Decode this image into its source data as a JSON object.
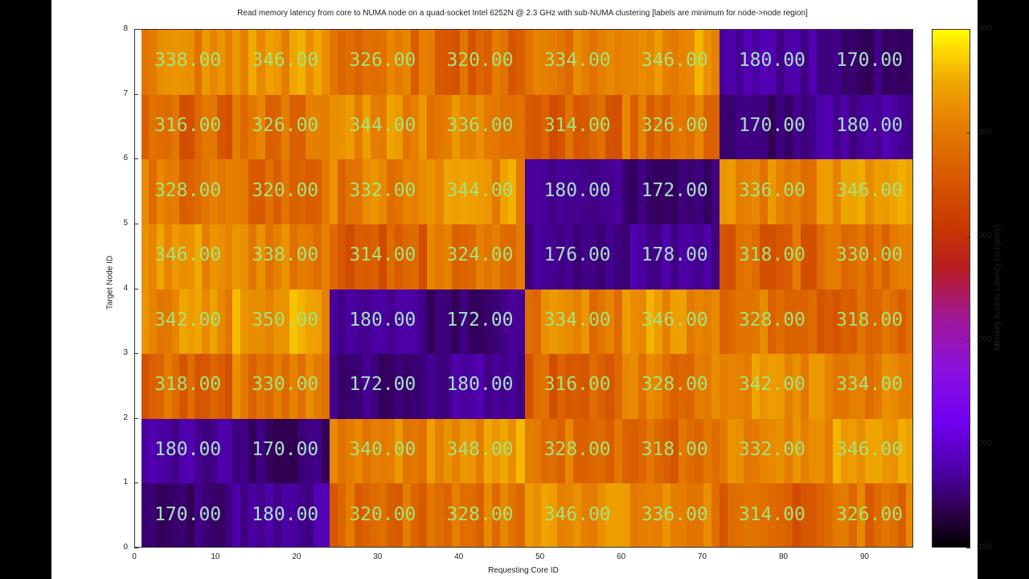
{
  "chart_data": {
    "type": "heatmap",
    "title": "Read memory latency from core to NUMA node on a quad-socket Intel 6252N @ 2.3 GHz with sub-NUMA clustering [labels are minimum for node->node region]",
    "xlabel": "Requesting Core ID",
    "ylabel": "Target Node ID",
    "colorbar_label": "Memory Access Latency (in cycles)",
    "xlim": [
      0,
      96
    ],
    "ylim": [
      0,
      8
    ],
    "zlim": [
      150,
      400
    ],
    "x_ticks": [
      "0",
      "10",
      "20",
      "30",
      "40",
      "50",
      "60",
      "70",
      "80",
      "90"
    ],
    "y_ticks": [
      "0",
      "1",
      "2",
      "3",
      "4",
      "5",
      "6",
      "7",
      "8"
    ],
    "colorbar_ticks": [
      "150",
      "200",
      "250",
      "300",
      "350",
      "400"
    ],
    "colormap": "gnuplot-like (black-purple-red-orange-yellow)",
    "core_groups": [
      "0-11",
      "12-23",
      "24-35",
      "36-47",
      "48-59",
      "60-71",
      "72-83",
      "84-95"
    ],
    "target_nodes": [
      0,
      1,
      2,
      3,
      4,
      5,
      6,
      7
    ],
    "values_by_node": [
      [
        170.0,
        180.0,
        320.0,
        328.0,
        346.0,
        336.0,
        314.0,
        326.0
      ],
      [
        180.0,
        170.0,
        340.0,
        348.0,
        328.0,
        318.0,
        332.0,
        346.0
      ],
      [
        318.0,
        330.0,
        172.0,
        180.0,
        316.0,
        328.0,
        342.0,
        334.0
      ],
      [
        342.0,
        350.0,
        180.0,
        172.0,
        334.0,
        346.0,
        328.0,
        318.0
      ],
      [
        346.0,
        338.0,
        314.0,
        324.0,
        176.0,
        178.0,
        318.0,
        330.0
      ],
      [
        328.0,
        320.0,
        332.0,
        344.0,
        180.0,
        172.0,
        336.0,
        346.0
      ],
      [
        316.0,
        326.0,
        344.0,
        336.0,
        314.0,
        326.0,
        170.0,
        180.0
      ],
      [
        338.0,
        346.0,
        326.0,
        320.0,
        334.0,
        346.0,
        180.0,
        170.0
      ]
    ],
    "labels_by_node": [
      [
        "170.00",
        "180.00",
        "320.00",
        "328.00",
        "346.00",
        "336.00",
        "314.00",
        "326.00"
      ],
      [
        "180.00",
        "170.00",
        "340.00",
        "348.00",
        "328.00",
        "318.00",
        "332.00",
        "346.00"
      ],
      [
        "318.00",
        "330.00",
        "172.00",
        "180.00",
        "316.00",
        "328.00",
        "342.00",
        "334.00"
      ],
      [
        "342.00",
        "350.00",
        "180.00",
        "172.00",
        "334.00",
        "346.00",
        "328.00",
        "318.00"
      ],
      [
        "346.00",
        "338.00",
        "314.00",
        "324.00",
        "176.00",
        "178.00",
        "318.00",
        "330.00"
      ],
      [
        "328.00",
        "320.00",
        "332.00",
        "344.00",
        "180.00",
        "172.00",
        "336.00",
        "346.00"
      ],
      [
        "316.00",
        "326.00",
        "344.00",
        "336.00",
        "314.00",
        "326.00",
        "170.00",
        "180.00"
      ],
      [
        "338.00",
        "346.00",
        "326.00",
        "320.00",
        "334.00",
        "346.00",
        "180.00",
        "170.00"
      ]
    ]
  }
}
